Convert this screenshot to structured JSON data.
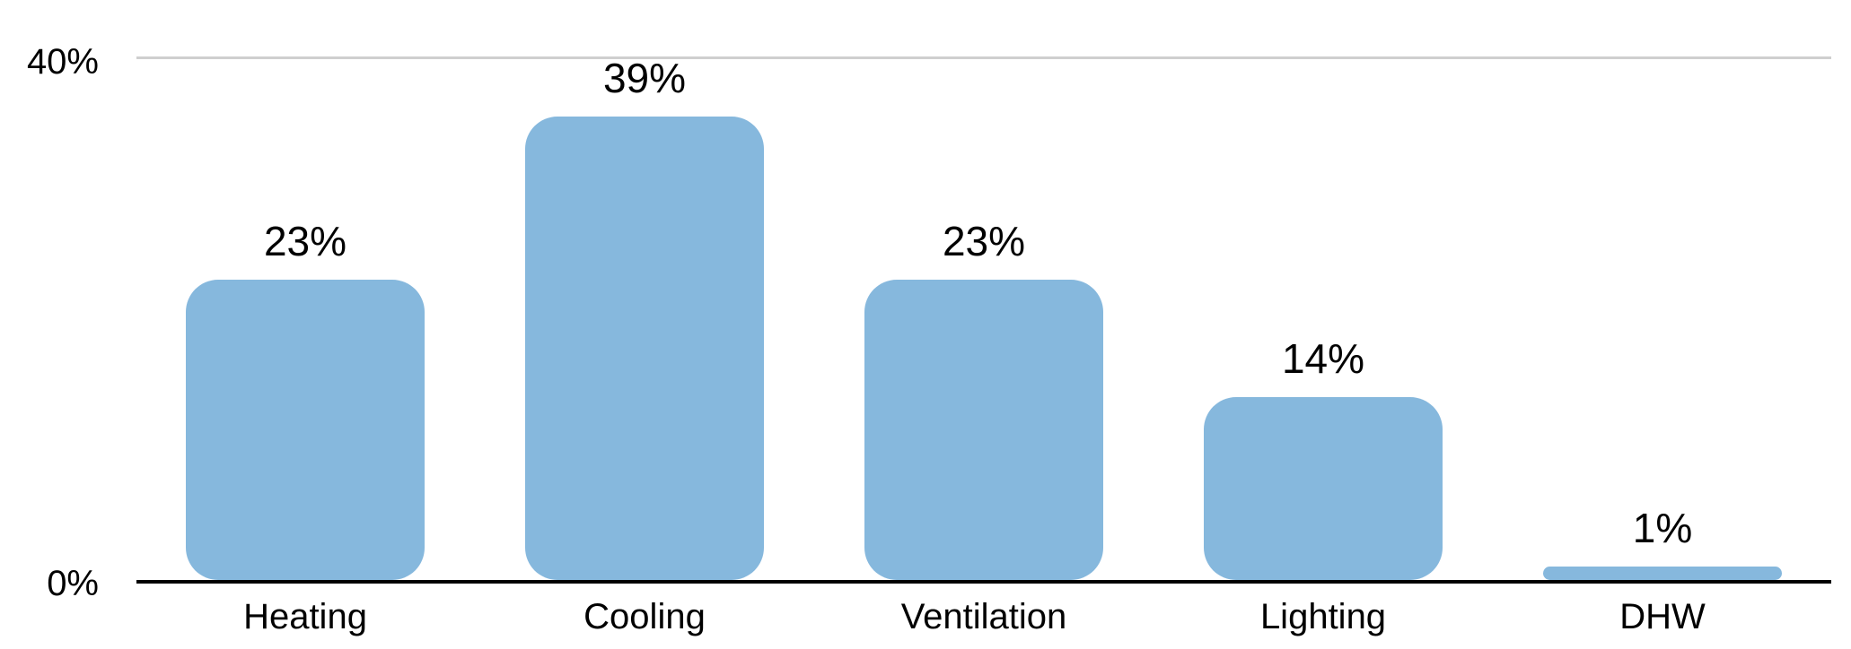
{
  "chart_data": {
    "type": "bar",
    "categories": [
      "Heating",
      "Cooling",
      "Ventilation",
      "Lighting",
      "DHW"
    ],
    "values": [
      23,
      39,
      23,
      14,
      1
    ],
    "data_labels": [
      "23%",
      "39%",
      "23%",
      "14%",
      "1%"
    ],
    "title": "",
    "xlabel": "",
    "ylabel": "",
    "ylim": [
      0,
      40
    ],
    "yticks": [
      {
        "value": 0,
        "label": "0%"
      },
      {
        "value": 40,
        "label": "40%"
      }
    ],
    "grid": "single horizontal gridline at 40% only",
    "legend": "none",
    "colors": {
      "bar": "#86B8DD",
      "gridline": "#CFCFCF",
      "axis_line": "#000000",
      "text": "#000000",
      "background": "#FFFFFF"
    }
  }
}
